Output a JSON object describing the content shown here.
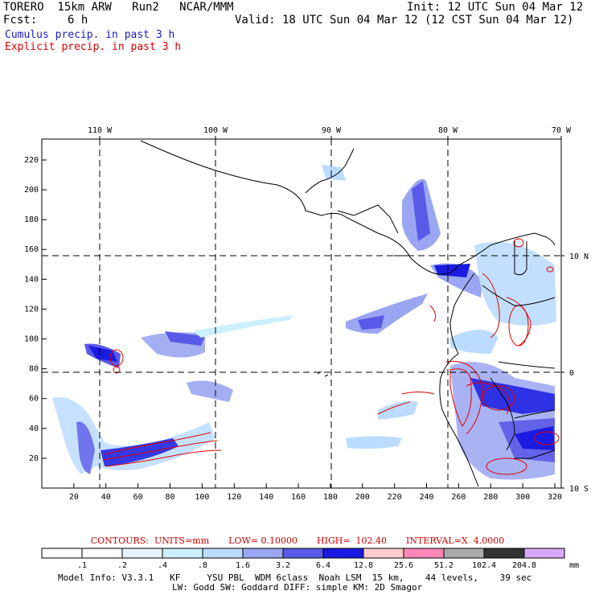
{
  "header": {
    "model": "TORERO  15km ARW   Run2   NCAR/MMM",
    "init": "Init: 12 UTC Sun 04 Mar 12",
    "fcst_label": "Fcst:",
    "fcst_hours": "6 h",
    "valid": "Valid: 18 UTC Sun 04 Mar 12 (12 CST Sun 04 Mar 12)",
    "line1": "Cumulus precip. in past 3 h",
    "line2": "Explicit precip. in past 3 h"
  },
  "axes": {
    "top_lon_labels": [
      "110 W",
      "100 W",
      "90 W",
      "80 W",
      "70 W"
    ],
    "right_lat_labels": [
      "10 N",
      "0",
      "10 S"
    ],
    "left_ticks": [
      "220",
      "200",
      "180",
      "160",
      "140",
      "120",
      "100",
      "80",
      "60",
      "40",
      "20"
    ],
    "bottom_ticks": [
      "20",
      "40",
      "60",
      "80",
      "100",
      "120",
      "140",
      "160",
      "180",
      "200",
      "220",
      "240",
      "260",
      "280",
      "300",
      "320"
    ]
  },
  "contours": {
    "units": "CONTOURS:  UNITS=mm",
    "low": "LOW= 0.10000",
    "high": "HIGH=  102.40",
    "interval": "INTERVAL=X  4.0000"
  },
  "legend": {
    "labels": [
      ".1",
      ".2",
      ".4",
      ".8",
      "1.6",
      "3.2",
      "6.4",
      "12.8",
      "25.6",
      "51.2",
      "102.4",
      "204.8"
    ],
    "unit": "mm",
    "colors": [
      "#ffffff",
      "#ffffff",
      "#e6f3ff",
      "#ccf0ff",
      "#bcdcff",
      "#9aa6f2",
      "#5a5ae8",
      "#1a1ae0",
      "#ffcccc",
      "#ff88b8",
      "#aaaaaa",
      "#333333",
      "#d8a8f8"
    ]
  },
  "footer": {
    "line1": "Model Info: V3.3.1   KF     YSU PBL  WDM 6class  Noah LSM  15 km,    44 levels,    39 sec",
    "line2": "LW: Godd SW: Goddard DIFF: simple KM: 2D Smagor"
  }
}
